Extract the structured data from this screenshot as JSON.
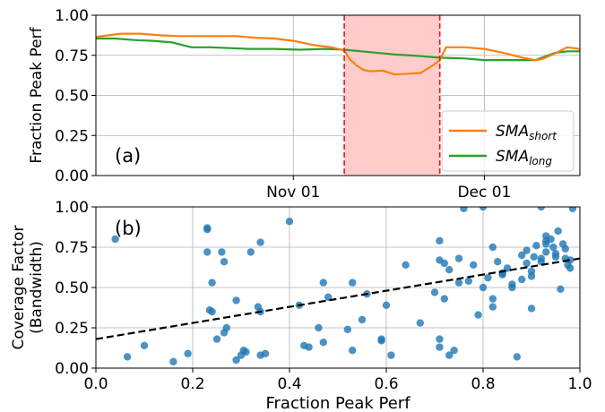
{
  "colors": {
    "sma_short": "#ff7f0e",
    "sma_long": "#2ca02c",
    "scatter": "#1f77b4",
    "shade": "#ffcccc",
    "vline": "#e31a1c",
    "fit": "#000000",
    "grid": "#b0b0b0"
  },
  "chart_data": [
    {
      "type": "line",
      "panel_label": "(a)",
      "ylabel": "Fraction Peak Perf",
      "xlim": [
        "2019-10-01",
        "2019-12-16"
      ],
      "ylim": [
        0,
        1
      ],
      "x_ticks": [
        {
          "date": "2019-11-01",
          "label": "Nov 01"
        },
        {
          "date": "2019-12-01",
          "label": "Dec 01"
        }
      ],
      "y_ticks": [
        {
          "value": 0.0,
          "label": "0.00"
        },
        {
          "value": 0.25,
          "label": "0.25"
        },
        {
          "value": 0.5,
          "label": "0.50"
        },
        {
          "value": 0.75,
          "label": "0.75"
        },
        {
          "value": 1.0,
          "label": "1.00"
        }
      ],
      "grid": true,
      "shaded_region": {
        "start": "2019-11-09",
        "end": "2019-11-24"
      },
      "vertical_lines": [
        "2019-11-09",
        "2019-11-24"
      ],
      "legend": {
        "position": "lower right",
        "entries": [
          {
            "series": 0,
            "main": "SMA",
            "sub": "short"
          },
          {
            "series": 1,
            "main": "SMA",
            "sub": "long"
          }
        ]
      },
      "series": [
        {
          "name": "SMA_short",
          "x": [
            "2019-10-01",
            "2019-10-03",
            "2019-10-05",
            "2019-10-08",
            "2019-10-11",
            "2019-10-14",
            "2019-10-17",
            "2019-10-20",
            "2019-10-23",
            "2019-10-26",
            "2019-10-29",
            "2019-11-01",
            "2019-11-04",
            "2019-11-07",
            "2019-11-09",
            "2019-11-10",
            "2019-11-11",
            "2019-11-12",
            "2019-11-13",
            "2019-11-15",
            "2019-11-17",
            "2019-11-19",
            "2019-11-21",
            "2019-11-23",
            "2019-11-24",
            "2019-11-25",
            "2019-11-28",
            "2019-12-01",
            "2019-12-04",
            "2019-12-07",
            "2019-12-09",
            "2019-12-10",
            "2019-12-12",
            "2019-12-14",
            "2019-12-16"
          ],
          "y": [
            0.865,
            0.875,
            0.885,
            0.885,
            0.875,
            0.87,
            0.87,
            0.87,
            0.87,
            0.86,
            0.855,
            0.84,
            0.815,
            0.8,
            0.78,
            0.72,
            0.685,
            0.66,
            0.65,
            0.655,
            0.63,
            0.635,
            0.64,
            0.69,
            0.72,
            0.8,
            0.8,
            0.79,
            0.765,
            0.735,
            0.72,
            0.725,
            0.76,
            0.8,
            0.79
          ]
        },
        {
          "name": "SMA_long",
          "x": [
            "2019-10-01",
            "2019-10-04",
            "2019-10-07",
            "2019-10-10",
            "2019-10-13",
            "2019-10-16",
            "2019-10-19",
            "2019-10-22",
            "2019-10-25",
            "2019-10-29",
            "2019-11-02",
            "2019-11-06",
            "2019-11-09",
            "2019-11-13",
            "2019-11-17",
            "2019-11-21",
            "2019-11-24",
            "2019-11-28",
            "2019-12-01",
            "2019-12-05",
            "2019-12-09",
            "2019-12-12",
            "2019-12-14",
            "2019-12-16"
          ],
          "y": [
            0.855,
            0.855,
            0.845,
            0.84,
            0.83,
            0.8,
            0.8,
            0.795,
            0.79,
            0.79,
            0.785,
            0.79,
            0.785,
            0.77,
            0.755,
            0.745,
            0.735,
            0.73,
            0.72,
            0.72,
            0.72,
            0.765,
            0.775,
            0.775
          ]
        }
      ]
    },
    {
      "type": "scatter",
      "panel_label": "(b)",
      "xlabel": "Fraction Peak Perf",
      "ylabel": [
        "Coverage Factor",
        "(Bandwidth)"
      ],
      "xlim": [
        0,
        1
      ],
      "ylim": [
        0,
        1
      ],
      "x_ticks": [
        {
          "value": 0.0,
          "label": "0.0"
        },
        {
          "value": 0.2,
          "label": "0.2"
        },
        {
          "value": 0.4,
          "label": "0.4"
        },
        {
          "value": 0.6,
          "label": "0.6"
        },
        {
          "value": 0.8,
          "label": "0.8"
        },
        {
          "value": 1.0,
          "label": "1.0"
        }
      ],
      "y_ticks": [
        {
          "value": 0.0,
          "label": "0.00"
        },
        {
          "value": 0.25,
          "label": "0.25"
        },
        {
          "value": 0.5,
          "label": "0.50"
        },
        {
          "value": 0.75,
          "label": "0.75"
        },
        {
          "value": 1.0,
          "label": "1.00"
        }
      ],
      "grid": true,
      "fit_line": {
        "x": [
          0,
          1
        ],
        "y": [
          0.18,
          0.68
        ],
        "style": "dashed"
      },
      "points": [
        [
          0.04,
          0.8
        ],
        [
          0.065,
          0.07
        ],
        [
          0.1,
          0.14
        ],
        [
          0.16,
          0.04
        ],
        [
          0.19,
          0.09
        ],
        [
          0.23,
          0.86
        ],
        [
          0.23,
          0.87
        ],
        [
          0.23,
          0.72
        ],
        [
          0.235,
          0.36
        ],
        [
          0.24,
          0.35
        ],
        [
          0.24,
          0.53
        ],
        [
          0.25,
          0.18
        ],
        [
          0.265,
          0.22
        ],
        [
          0.26,
          0.72
        ],
        [
          0.265,
          0.66
        ],
        [
          0.27,
          0.25
        ],
        [
          0.29,
          0.42
        ],
        [
          0.29,
          0.05
        ],
        [
          0.3,
          0.08
        ],
        [
          0.305,
          0.11
        ],
        [
          0.31,
          0.1
        ],
        [
          0.32,
          0.72
        ],
        [
          0.335,
          0.38
        ],
        [
          0.34,
          0.08
        ],
        [
          0.34,
          0.78
        ],
        [
          0.34,
          0.35
        ],
        [
          0.35,
          0.09
        ],
        [
          0.4,
          0.91
        ],
        [
          0.42,
          0.39
        ],
        [
          0.43,
          0.14
        ],
        [
          0.44,
          0.13
        ],
        [
          0.46,
          0.25
        ],
        [
          0.47,
          0.53
        ],
        [
          0.47,
          0.16
        ],
        [
          0.48,
          0.44
        ],
        [
          0.52,
          0.24
        ],
        [
          0.53,
          0.11
        ],
        [
          0.53,
          0.53
        ],
        [
          0.55,
          0.3
        ],
        [
          0.56,
          0.46
        ],
        [
          0.59,
          0.17
        ],
        [
          0.59,
          0.18
        ],
        [
          0.6,
          0.39
        ],
        [
          0.61,
          0.08
        ],
        [
          0.64,
          0.64
        ],
        [
          0.67,
          0.28
        ],
        [
          0.7,
          0.47
        ],
        [
          0.71,
          0.67
        ],
        [
          0.71,
          0.18
        ],
        [
          0.71,
          0.13
        ],
        [
          0.71,
          0.79
        ],
        [
          0.72,
          0.43
        ],
        [
          0.72,
          0.65
        ],
        [
          0.73,
          0.08
        ],
        [
          0.73,
          0.61
        ],
        [
          0.74,
          0.11
        ],
        [
          0.75,
          0.68
        ],
        [
          0.75,
          0.53
        ],
        [
          0.76,
          0.99
        ],
        [
          0.77,
          0.54
        ],
        [
          0.78,
          0.64
        ],
        [
          0.79,
          0.33
        ],
        [
          0.8,
          1.0
        ],
        [
          0.8,
          0.5
        ],
        [
          0.81,
          0.56
        ],
        [
          0.82,
          0.75
        ],
        [
          0.82,
          0.43
        ],
        [
          0.82,
          0.38
        ],
        [
          0.83,
          0.66
        ],
        [
          0.84,
          0.59
        ],
        [
          0.84,
          0.58
        ],
        [
          0.85,
          0.62
        ],
        [
          0.86,
          0.52
        ],
        [
          0.86,
          0.5
        ],
        [
          0.87,
          0.07
        ],
        [
          0.88,
          0.55
        ],
        [
          0.88,
          0.7
        ],
        [
          0.89,
          0.73
        ],
        [
          0.89,
          0.65
        ],
        [
          0.9,
          0.37
        ],
        [
          0.9,
          0.57
        ],
        [
          0.905,
          0.69
        ],
        [
          0.91,
          0.76
        ],
        [
          0.92,
          0.66
        ],
        [
          0.92,
          0.68
        ],
        [
          0.93,
          0.79
        ],
        [
          0.93,
          0.77
        ],
        [
          0.93,
          0.82
        ],
        [
          0.94,
          0.8
        ],
        [
          0.945,
          0.75
        ],
        [
          0.95,
          0.71
        ],
        [
          0.95,
          0.69
        ],
        [
          0.955,
          0.85
        ],
        [
          0.96,
          0.49
        ],
        [
          0.965,
          0.77
        ],
        [
          0.97,
          0.74
        ],
        [
          0.97,
          0.68
        ],
        [
          0.975,
          0.64
        ],
        [
          0.98,
          0.62
        ],
        [
          0.98,
          0.67
        ],
        [
          0.985,
          0.99
        ],
        [
          0.92,
          1.0
        ],
        [
          0.9,
          0.6
        ],
        [
          0.93,
          0.72
        ]
      ]
    }
  ]
}
